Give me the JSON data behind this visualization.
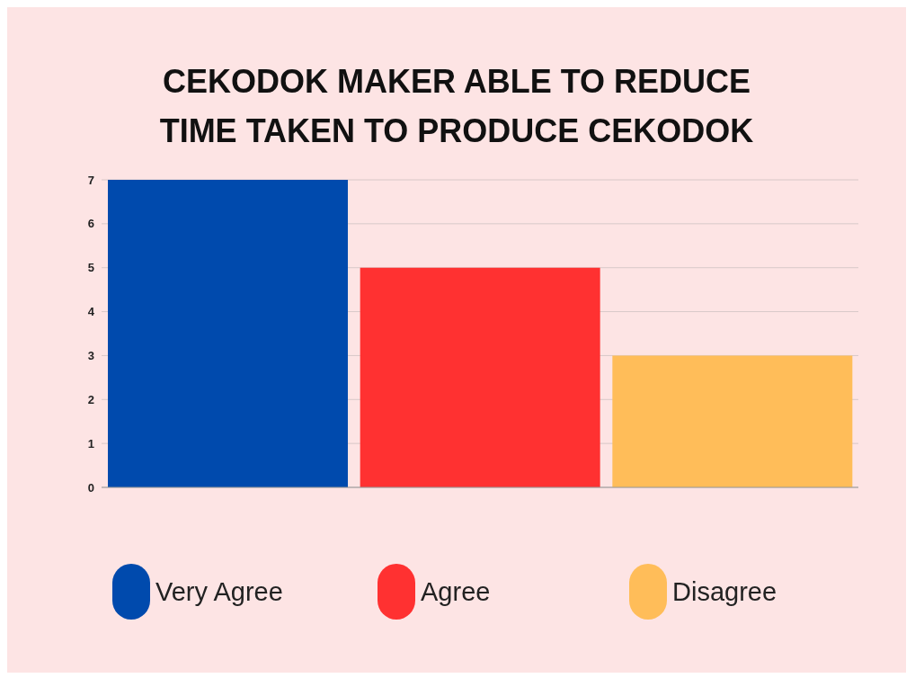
{
  "chart_data": {
    "type": "bar",
    "title": "CEKODOK MAKER ABLE TO REDUCE TIME TAKEN TO PRODUCE CEKODOK",
    "categories": [
      null,
      null,
      null
    ],
    "series": [
      {
        "name": "Very Agree",
        "color": "#004aad",
        "values": [
          7,
          null,
          null
        ]
      },
      {
        "name": "Agree",
        "color": "#ff3131",
        "values": [
          null,
          5,
          null
        ]
      },
      {
        "name": "Disagree",
        "color": "#ffbd59",
        "values": [
          null,
          null,
          3
        ]
      }
    ],
    "stacked": true,
    "ylim": [
      0,
      7
    ],
    "yticks": [
      0,
      1,
      2,
      3,
      4,
      5,
      6,
      7
    ],
    "grid": "y",
    "legend": "bottom",
    "tick_labels": "y"
  }
}
